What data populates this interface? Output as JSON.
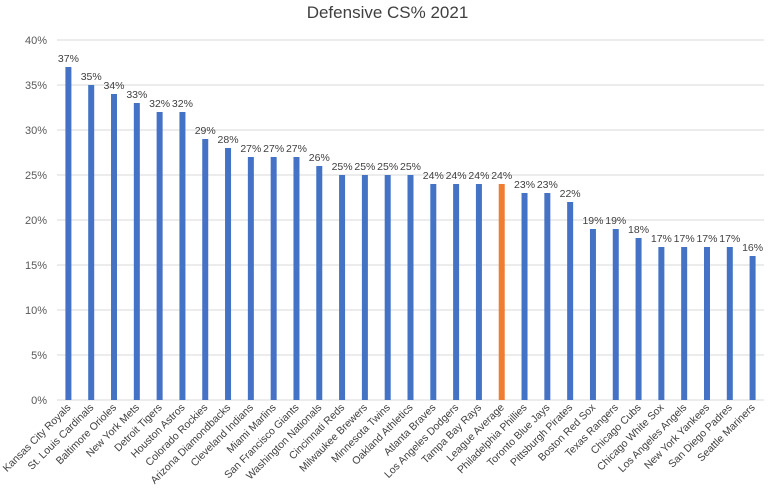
{
  "chart_data": {
    "type": "bar",
    "title": "Defensive CS% 2021",
    "xlabel": "",
    "ylabel": "",
    "ylim": [
      0,
      40
    ],
    "y_ticks": [
      "0%",
      "5%",
      "10%",
      "15%",
      "20%",
      "25%",
      "30%",
      "35%",
      "40%"
    ],
    "grid": true,
    "legend": "none",
    "colors": {
      "default": "#4472C4",
      "highlight": "#ED7D31",
      "grid": "#D9D9D9"
    },
    "highlight_category": "League Average",
    "categories": [
      "Kansas City Royals",
      "St. Louis Cardinals",
      "Baltimore Orioles",
      "New York Mets",
      "Detroit Tigers",
      "Houston Astros",
      "Colorado Rockies",
      "Arizona Diamondbacks",
      "Cleveland Indians",
      "Miami Marlins",
      "San Francisco Giants",
      "Washington Nationals",
      "Cincinnati Reds",
      "Milwaukee Brewers",
      "Minnesota Twins",
      "Oakland Athletics",
      "Atlanta Braves",
      "Los Angeles Dodgers",
      "Tampa Bay Rays",
      "League Average",
      "Philadelphia Phillies",
      "Toronto Blue Jays",
      "Pittsburgh Pirates",
      "Boston Red Sox",
      "Texas Rangers",
      "Chicago Cubs",
      "Chicago White Sox",
      "Los Angeles Angels",
      "New York Yankees",
      "San Diego Padres",
      "Seattle Mariners"
    ],
    "values": [
      37,
      35,
      34,
      33,
      32,
      32,
      29,
      28,
      27,
      27,
      27,
      26,
      25,
      25,
      25,
      25,
      24,
      24,
      24,
      24,
      23,
      23,
      22,
      19,
      19,
      18,
      17,
      17,
      17,
      17,
      16
    ],
    "data_labels": [
      "37%",
      "35%",
      "34%",
      "33%",
      "32%",
      "32%",
      "29%",
      "28%",
      "27%",
      "27%",
      "27%",
      "26%",
      "25%",
      "25%",
      "25%",
      "25%",
      "24%",
      "24%",
      "24%",
      "24%",
      "23%",
      "23%",
      "22%",
      "19%",
      "19%",
      "18%",
      "17%",
      "17%",
      "17%",
      "17%",
      "16%"
    ]
  }
}
